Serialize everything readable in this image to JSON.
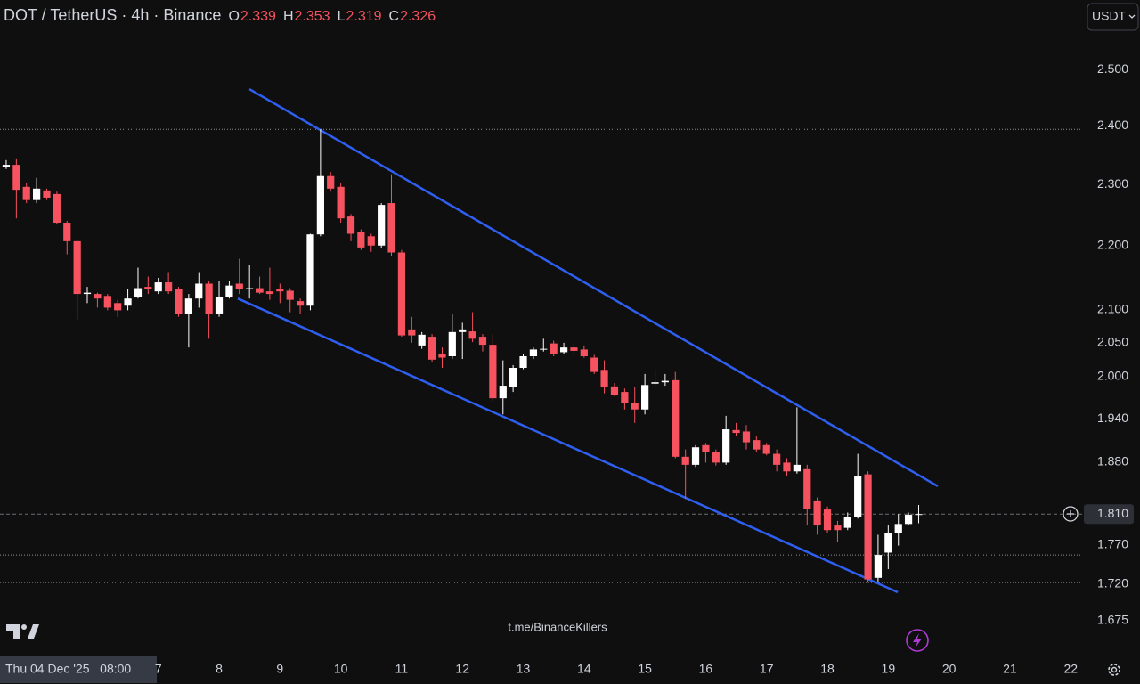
{
  "header": {
    "symbol": "DOT / TetherUS · 4h · Binance",
    "ohlc": [
      {
        "label": "O",
        "value": 2.339
      },
      {
        "label": "H",
        "value": 2.353
      },
      {
        "label": "L",
        "value": 2.319
      },
      {
        "label": "C",
        "value": 2.326
      }
    ],
    "currency": "USDT"
  },
  "watermark": "t.me/BinanceKillers",
  "crosshair_label": "Thu 04 Dec '25   08:00",
  "chart_data": {
    "type": "candlestick",
    "log_scale": true,
    "up_color": "#ffffff",
    "down_color": "#f7525f",
    "trendline_color": "#2f5ff0",
    "hline_color": "#8a8d94",
    "xlim": [
      4.398,
      22.187
    ],
    "xticks": [
      7,
      8,
      9,
      10,
      11,
      12,
      13,
      14,
      15,
      16,
      17,
      18,
      19,
      20,
      21,
      22
    ],
    "ylim": [
      1.63,
      2.63
    ],
    "yticks": [
      {
        "value": 2.5,
        "label": "2.500"
      },
      {
        "value": 2.4,
        "label": "2.400"
      },
      {
        "value": 2.3,
        "label": "2.300"
      },
      {
        "value": 2.2,
        "label": "2.200"
      },
      {
        "value": 2.1,
        "label": "2.100"
      },
      {
        "value": 2.05,
        "label": "2.050"
      },
      {
        "value": 2.0,
        "label": "2.000"
      },
      {
        "value": 1.94,
        "label": "1.940"
      },
      {
        "value": 1.88,
        "label": "1.880"
      },
      {
        "value": 1.77,
        "label": "1.770"
      },
      {
        "value": 1.72,
        "label": "1.720"
      },
      {
        "value": 1.675,
        "label": "1.675"
      }
    ],
    "last_price": {
      "value": 1.81,
      "label": "1.810"
    },
    "hlines": [
      2.394,
      1.757,
      1.722
    ],
    "trendlines": [
      {
        "x": [
          8.498,
          19.815
        ],
        "y": [
          2.465,
          1.847
        ]
      },
      {
        "x": [
          8.307,
          19.157
        ],
        "y": [
          2.117,
          1.71
        ]
      }
    ],
    "x": [
      4.5,
      4.667,
      4.833,
      5,
      5.167,
      5.333,
      5.5,
      5.667,
      5.833,
      6,
      6.167,
      6.333,
      6.5,
      6.667,
      6.833,
      7,
      7.167,
      7.333,
      7.5,
      7.667,
      7.833,
      8,
      8.167,
      8.333,
      8.5,
      8.667,
      8.833,
      9,
      9.167,
      9.333,
      9.5,
      9.667,
      9.833,
      10,
      10.167,
      10.333,
      10.5,
      10.667,
      10.833,
      11,
      11.167,
      11.333,
      11.5,
      11.667,
      11.833,
      12,
      12.167,
      12.333,
      12.5,
      12.667,
      12.833,
      13,
      13.167,
      13.333,
      13.5,
      13.667,
      13.833,
      14,
      14.167,
      14.333,
      14.5,
      14.667,
      14.833,
      15,
      15.167,
      15.333,
      15.5,
      15.667,
      15.833,
      16,
      16.167,
      16.333,
      16.5,
      16.667,
      16.833,
      17,
      17.167,
      17.333,
      17.5,
      17.667,
      17.833,
      18,
      18.167,
      18.333,
      18.5,
      18.667,
      18.833,
      19,
      19.167,
      19.333,
      19.5
    ],
    "open": [
      2.33,
      2.333,
      2.296,
      2.274,
      2.29,
      2.284,
      2.237,
      2.207,
      2.124,
      2.124,
      2.121,
      2.11,
      2.106,
      2.119,
      2.135,
      2.128,
      2.142,
      2.131,
      2.093,
      2.117,
      2.14,
      2.093,
      2.119,
      2.14,
      2.131,
      2.133,
      2.128,
      2.131,
      2.129,
      2.113,
      2.106,
      2.218,
      2.314,
      2.296,
      2.247,
      2.222,
      2.215,
      2.2,
      2.269,
      2.189,
      2.07,
      2.046,
      2.059,
      2.034,
      2.03,
      2.066,
      2.067,
      2.059,
      2.047,
      1.969,
      1.985,
      2.013,
      2.03,
      2.04,
      2.049,
      2.036,
      2.043,
      2.04,
      2.028,
      2.01,
      1.986,
      1.978,
      1.962,
      1.953,
      1.99,
      1.992,
      1.995,
      1.887,
      1.876,
      1.903,
      1.893,
      1.879,
      1.924,
      1.922,
      1.91,
      1.903,
      1.891,
      1.879,
      1.867,
      1.87,
      1.828,
      1.816,
      1.795,
      1.792,
      1.806,
      1.863,
      1.728,
      1.76,
      1.785,
      1.797,
      1.809
    ],
    "high": [
      2.341,
      2.344,
      2.303,
      2.311,
      2.293,
      2.288,
      2.24,
      2.21,
      2.135,
      2.126,
      2.124,
      2.115,
      2.131,
      2.165,
      2.151,
      2.149,
      2.158,
      2.135,
      2.124,
      2.158,
      2.144,
      2.144,
      2.144,
      2.179,
      2.169,
      2.151,
      2.165,
      2.14,
      2.133,
      2.117,
      2.219,
      2.394,
      2.321,
      2.303,
      2.251,
      2.226,
      2.219,
      2.269,
      2.317,
      2.193,
      2.089,
      2.066,
      2.063,
      2.043,
      2.093,
      2.08,
      2.096,
      2.063,
      2.063,
      2.024,
      2.017,
      2.034,
      2.043,
      2.056,
      2.053,
      2.05,
      2.05,
      2.046,
      2.032,
      2.024,
      1.991,
      1.983,
      1.985,
      2.004,
      2.01,
      2.004,
      2.007,
      1.897,
      1.903,
      1.906,
      1.897,
      1.944,
      1.934,
      1.931,
      1.916,
      1.906,
      1.897,
      1.885,
      1.956,
      1.876,
      1.832,
      1.82,
      1.801,
      1.812,
      1.891,
      1.867,
      1.783,
      1.795,
      1.81,
      1.812,
      1.822
    ],
    "low": [
      2.326,
      2.244,
      2.269,
      2.269,
      2.274,
      2.234,
      2.186,
      2.085,
      2.11,
      2.103,
      2.099,
      2.089,
      2.099,
      2.117,
      2.124,
      2.124,
      2.124,
      2.089,
      2.043,
      2.103,
      2.056,
      2.089,
      2.117,
      2.124,
      2.117,
      2.124,
      2.115,
      2.11,
      2.096,
      2.093,
      2.099,
      2.215,
      2.288,
      2.237,
      2.207,
      2.193,
      2.19,
      2.196,
      2.183,
      2.059,
      2.05,
      2.041,
      2.021,
      2.013,
      2.026,
      2.026,
      2.051,
      2.037,
      1.965,
      1.946,
      1.978,
      2.011,
      2.026,
      2.037,
      2.03,
      2.033,
      2.034,
      2.028,
      2.004,
      1.976,
      1.972,
      1.953,
      1.934,
      1.946,
      1.985,
      1.987,
      1.885,
      1.83,
      1.873,
      1.879,
      1.875,
      1.876,
      1.916,
      1.897,
      1.893,
      1.889,
      1.867,
      1.861,
      1.864,
      1.795,
      1.783,
      1.785,
      1.774,
      1.789,
      1.804,
      1.722,
      1.723,
      1.739,
      1.769,
      1.795,
      1.798
    ],
    "close": [
      2.333,
      2.291,
      2.274,
      2.293,
      2.278,
      2.237,
      2.207,
      2.124,
      2.126,
      2.117,
      2.103,
      2.099,
      2.117,
      2.133,
      2.131,
      2.142,
      2.128,
      2.093,
      2.117,
      2.14,
      2.093,
      2.119,
      2.137,
      2.131,
      2.133,
      2.126,
      2.124,
      2.128,
      2.115,
      2.106,
      2.218,
      2.314,
      2.293,
      2.244,
      2.219,
      2.197,
      2.2,
      2.266,
      2.189,
      2.061,
      2.061,
      2.062,
      2.025,
      2.028,
      2.066,
      2.07,
      2.056,
      2.047,
      1.969,
      1.987,
      2.013,
      2.03,
      2.04,
      2.041,
      2.034,
      2.043,
      2.038,
      2.03,
      2.007,
      1.985,
      1.974,
      1.962,
      1.953,
      1.988,
      1.992,
      1.994,
      1.887,
      1.876,
      1.9,
      1.893,
      1.879,
      1.925,
      1.92,
      1.907,
      1.897,
      1.891,
      1.876,
      1.867,
      1.876,
      1.817,
      1.795,
      1.789,
      1.789,
      1.806,
      1.861,
      1.726,
      1.757,
      1.785,
      1.797,
      1.809,
      1.81
    ]
  }
}
